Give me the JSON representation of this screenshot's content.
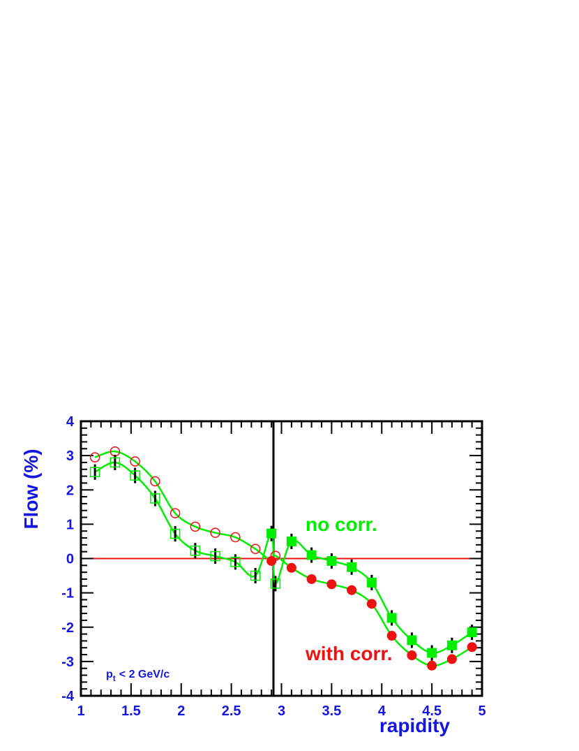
{
  "chart_data": {
    "type": "scatter",
    "xlabel": "rapidity",
    "ylabel": "Flow (%)",
    "xlim": [
      1,
      5
    ],
    "ylim": [
      -4,
      4
    ],
    "x_ticks": [
      "1",
      "1.5",
      "2",
      "2.5",
      "3",
      "3.5",
      "4",
      "4.5",
      "5"
    ],
    "y_ticks": [
      "-4",
      "-3",
      "-2",
      "-1",
      "0",
      "1",
      "2",
      "3",
      "4"
    ],
    "annotations": {
      "no_corr": "no corr.",
      "with_corr": "with corr.",
      "pt_main": "p",
      "pt_sub": "t",
      "pt_rest": "< 2 GeV/c"
    },
    "series": [
      {
        "marker": "open-circle",
        "color": "#ee1111",
        "x": [
          1.14,
          1.34,
          1.54,
          1.74,
          1.94,
          2.14,
          2.34,
          2.54,
          2.74,
          2.94
        ],
        "y": [
          2.95,
          3.12,
          2.83,
          2.25,
          1.32,
          0.93,
          0.75,
          0.62,
          0.28,
          0.08
        ]
      },
      {
        "marker": "open-square",
        "color": "#00ee00",
        "x": [
          1.14,
          1.34,
          1.54,
          1.74,
          1.94,
          2.14,
          2.34,
          2.54,
          2.74,
          2.94
        ],
        "y": [
          2.52,
          2.8,
          2.42,
          1.75,
          0.72,
          0.23,
          0.07,
          -0.1,
          -0.5,
          -0.73
        ]
      },
      {
        "marker": "filled-circle",
        "color": "#ee1111",
        "x": [
          2.9,
          3.1,
          3.3,
          3.5,
          3.7,
          3.9,
          4.1,
          4.3,
          4.5,
          4.7,
          4.9
        ],
        "y": [
          -0.07,
          -0.27,
          -0.6,
          -0.75,
          -0.92,
          -1.32,
          -2.25,
          -2.82,
          -3.12,
          -2.93,
          -2.58
        ]
      },
      {
        "marker": "filled-square",
        "color": "#00ee00",
        "x": [
          2.9,
          3.1,
          3.3,
          3.5,
          3.7,
          3.9,
          4.1,
          4.3,
          4.5,
          4.7,
          4.9
        ],
        "y": [
          0.73,
          0.5,
          0.1,
          -0.07,
          -0.25,
          -0.7,
          -1.73,
          -2.38,
          -2.75,
          -2.53,
          -2.15
        ]
      }
    ],
    "fit_curves_color": "#00ee00",
    "zero_line_color": "#ee1111",
    "mirror_line_x": 2.92
  }
}
